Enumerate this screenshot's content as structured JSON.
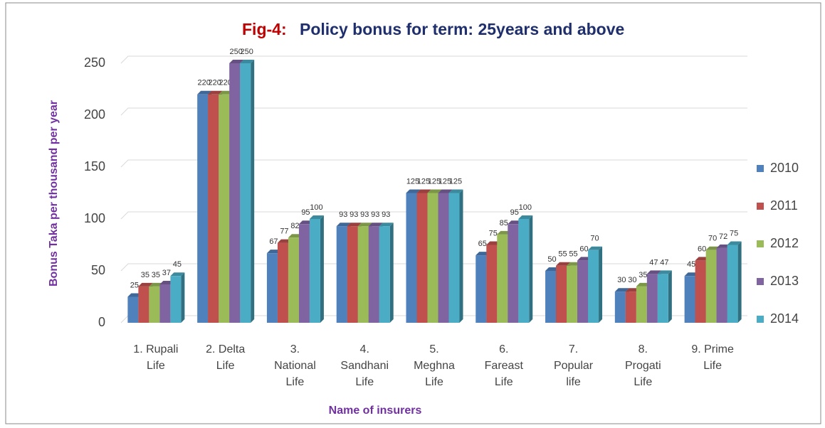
{
  "chart_data": {
    "type": "bar",
    "title_label": "Fig-4:",
    "title": "Policy bonus  for term:  25years and above",
    "y_label": "Bonus Taka per thousand per year",
    "x_label": "Name of insurers",
    "categories": [
      "1. Rupali\nLife",
      "2. Delta\nLife",
      "3.\nNational\nLife",
      "4.\nSandhani\nLife",
      "5.\nMeghna\nLife",
      "6.\nFareast\nLife",
      "7.\nPopular\nlife",
      "8.\nProgati\nLife",
      "9. Prime\nLife"
    ],
    "series": [
      {
        "name": "2010",
        "color": "#4f81bd",
        "values": [
          25,
          220,
          67,
          93,
          125,
          65,
          50,
          30,
          45
        ]
      },
      {
        "name": "2011",
        "color": "#c0504d",
        "values": [
          35,
          220,
          77,
          93,
          125,
          75,
          55,
          30,
          60
        ]
      },
      {
        "name": "2012",
        "color": "#9bbb59",
        "values": [
          35,
          220,
          82,
          93,
          125,
          85,
          55,
          35,
          70
        ]
      },
      {
        "name": "2013",
        "color": "#8064a2",
        "values": [
          37,
          250,
          95,
          93,
          125,
          95,
          60,
          47,
          72
        ]
      },
      {
        "name": "2014",
        "color": "#4bacc6",
        "values": [
          45,
          250,
          100,
          93,
          125,
          100,
          70,
          47,
          75
        ]
      }
    ],
    "ylim": [
      0,
      250
    ],
    "yticks": [
      0,
      50,
      100,
      150,
      200,
      250
    ],
    "grid": true,
    "legend": "right"
  }
}
